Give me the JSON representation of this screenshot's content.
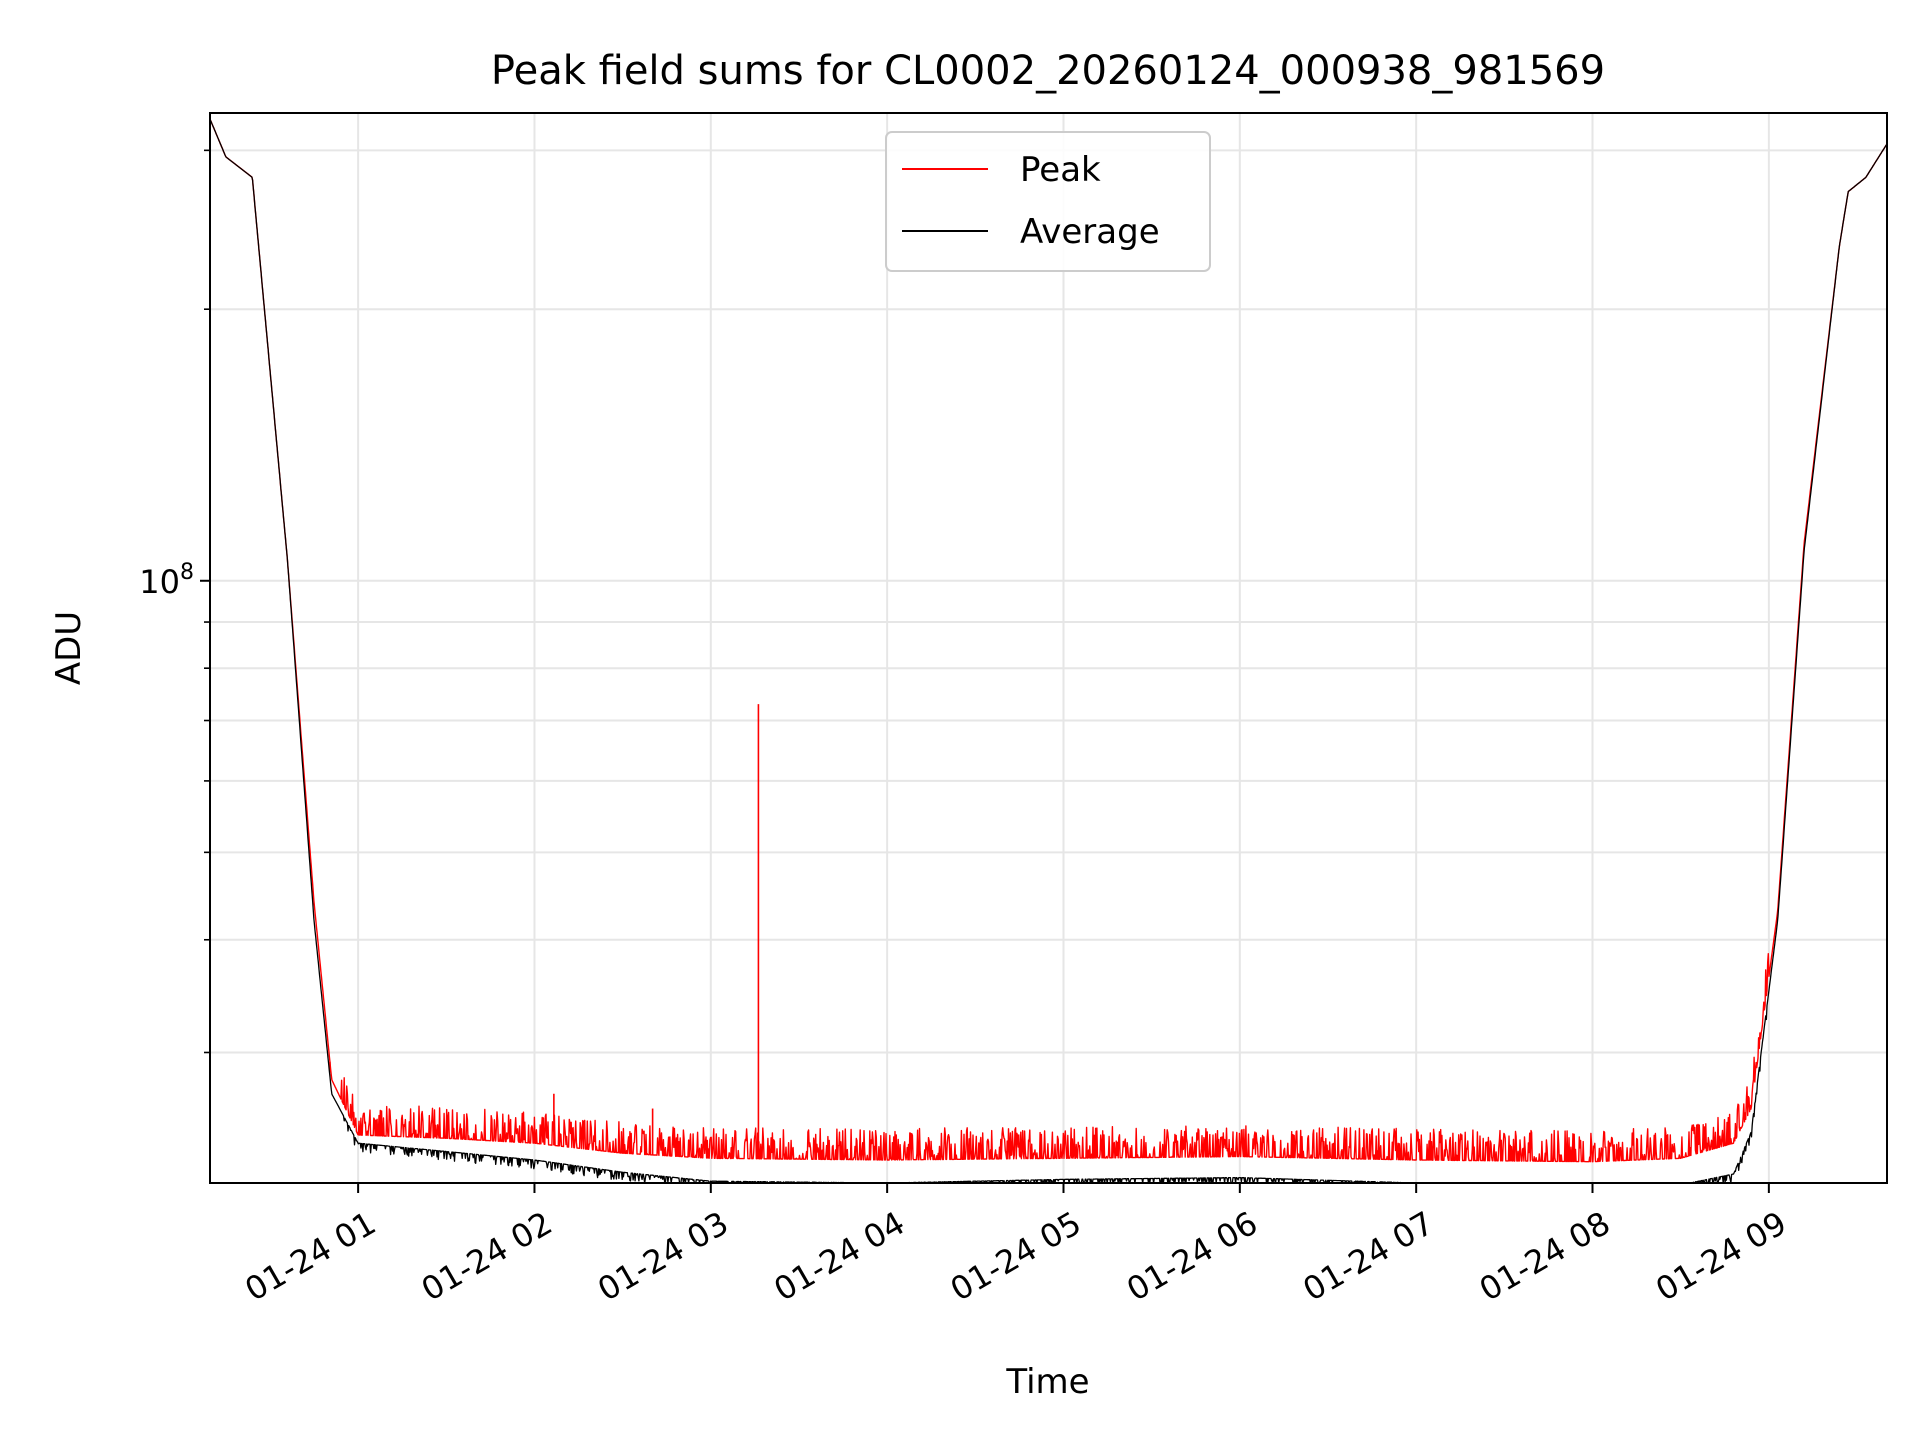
{
  "chart_data": {
    "type": "line",
    "title": "Peak field sums for CL0002_20260124_000938_981569",
    "xlabel": "Time",
    "ylabel": "ADU",
    "yscale": "log",
    "x_unit": "hours since 2026-01-24 00:00",
    "xlim": [
      0.16,
      9.67
    ],
    "ylim": [
      21500000.0,
      330000000.0
    ],
    "x_ticks": [
      {
        "value": 1,
        "label": "01-24 01"
      },
      {
        "value": 2,
        "label": "01-24 02"
      },
      {
        "value": 3,
        "label": "01-24 03"
      },
      {
        "value": 4,
        "label": "01-24 04"
      },
      {
        "value": 5,
        "label": "01-24 05"
      },
      {
        "value": 6,
        "label": "01-24 06"
      },
      {
        "value": 7,
        "label": "01-24 07"
      },
      {
        "value": 8,
        "label": "01-24 08"
      },
      {
        "value": 9,
        "label": "01-24 09"
      }
    ],
    "y_major_ticks": [
      {
        "value": 100000000,
        "base": "10",
        "exponent": "8"
      }
    ],
    "y_minor_ticks": [
      30000000,
      40000000,
      50000000,
      60000000,
      70000000,
      80000000,
      90000000,
      200000000,
      300000000
    ],
    "grid": true,
    "legend": {
      "position": "top-center",
      "entries": [
        "Peak",
        "Average"
      ]
    },
    "colors": {
      "Peak": "#ff0000",
      "Average": "#000000",
      "grid": "#e6e6e6"
    },
    "series": [
      {
        "name": "Peak",
        "color": "#ff0000",
        "x": [
          0.16,
          0.25,
          0.4,
          0.6,
          0.75,
          0.85,
          1.0,
          1.5,
          2.0,
          2.5,
          3.0,
          4.0,
          5.0,
          6.0,
          7.0,
          8.0,
          8.5,
          8.8,
          8.9,
          9.05,
          9.2,
          9.4,
          9.45,
          9.55,
          9.67
        ],
        "values": [
          325000000,
          295000000,
          280000000,
          105000000,
          44000000,
          28000000,
          24300000,
          24100000,
          23800000,
          23200000,
          22900000,
          22800000,
          22900000,
          23000000,
          22800000,
          22700000,
          22900000,
          23800000,
          26000000,
          43000000,
          110000000,
          235000000,
          270000000,
          280000000,
          305000000
        ],
        "spikes": [
          {
            "x": 3.27,
            "value": 73000000
          },
          {
            "x": 2.11,
            "value": 27000000
          },
          {
            "x": 2.67,
            "value": 26000000
          },
          {
            "x": 0.84,
            "value": 28500000
          },
          {
            "x": 1.13,
            "value": 25700000
          }
        ]
      },
      {
        "name": "Average",
        "color": "#000000",
        "x": [
          0.16,
          0.25,
          0.4,
          0.6,
          0.75,
          0.85,
          1.0,
          1.5,
          2.0,
          2.5,
          3.0,
          4.0,
          5.0,
          6.0,
          7.0,
          8.0,
          8.5,
          8.8,
          8.9,
          9.05,
          9.2,
          9.4,
          9.45,
          9.55,
          9.67
        ],
        "values": [
          325000000,
          295000000,
          280000000,
          105000000,
          42000000,
          27000000,
          23800000,
          23300000,
          22800000,
          22100000,
          21600000,
          21500000,
          21700000,
          21800000,
          21500000,
          21400000,
          21400000,
          22000000,
          24500000,
          42000000,
          108000000,
          235000000,
          270000000,
          280000000,
          305000000
        ]
      }
    ]
  }
}
